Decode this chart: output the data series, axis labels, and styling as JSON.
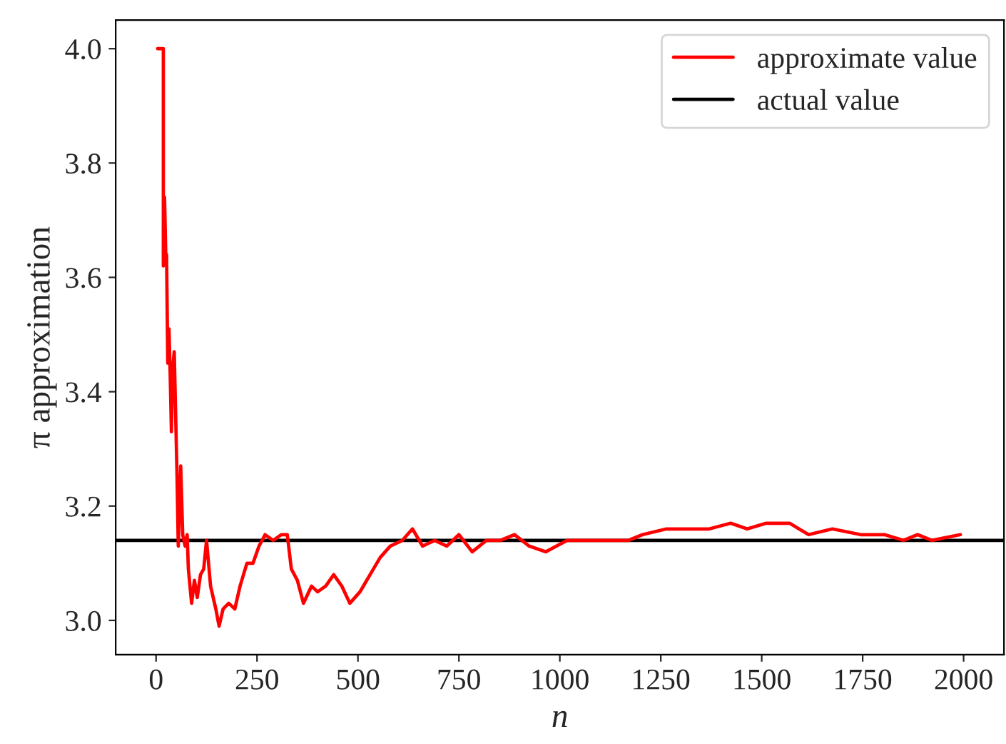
{
  "chart_data": {
    "type": "line",
    "xlabel": "n",
    "ylabel": "π approximation",
    "xlim": [
      -100,
      2100
    ],
    "ylim": [
      2.94,
      4.05
    ],
    "xticks": [
      0,
      250,
      500,
      750,
      1000,
      1250,
      1500,
      1750,
      2000
    ],
    "yticks": [
      {
        "value": 3.0,
        "label": "3.0"
      },
      {
        "value": 3.2,
        "label": "3.2"
      },
      {
        "value": 3.4,
        "label": "3.4"
      },
      {
        "value": 3.6,
        "label": "3.6"
      },
      {
        "value": 3.8,
        "label": "3.8"
      },
      {
        "value": 4.0,
        "label": "4.0"
      }
    ],
    "grid": false,
    "legend": "top right",
    "series": [
      {
        "name": "approximate value",
        "color": "#ff0000",
        "x": [
          4,
          18,
          18,
          21,
          24,
          26,
          29,
          32,
          35,
          38,
          41,
          45,
          52,
          55,
          61,
          66,
          72,
          77,
          80,
          88,
          95,
          102,
          110,
          118,
          125,
          135,
          148,
          156,
          166,
          180,
          195,
          208,
          225,
          240,
          255,
          270,
          290,
          310,
          325,
          335,
          350,
          365,
          385,
          400,
          420,
          440,
          460,
          480,
          505,
          530,
          555,
          580,
          610,
          635,
          660,
          690,
          720,
          750,
          783,
          818,
          853,
          888,
          924,
          965,
          1018,
          1064,
          1111,
          1170,
          1205,
          1264,
          1323,
          1370,
          1423,
          1464,
          1511,
          1569,
          1616,
          1675,
          1745,
          1804,
          1851,
          1886,
          1921,
          1992
        ],
        "values": [
          4.0,
          4.0,
          3.62,
          3.74,
          3.64,
          3.64,
          3.45,
          3.51,
          3.43,
          3.33,
          3.44,
          3.47,
          3.25,
          3.13,
          3.27,
          3.15,
          3.13,
          3.15,
          3.09,
          3.03,
          3.07,
          3.04,
          3.08,
          3.09,
          3.14,
          3.06,
          3.02,
          2.99,
          3.02,
          3.03,
          3.02,
          3.06,
          3.1,
          3.1,
          3.13,
          3.15,
          3.14,
          3.15,
          3.15,
          3.09,
          3.07,
          3.03,
          3.06,
          3.05,
          3.06,
          3.08,
          3.06,
          3.03,
          3.05,
          3.08,
          3.11,
          3.13,
          3.14,
          3.16,
          3.13,
          3.14,
          3.13,
          3.15,
          3.12,
          3.14,
          3.14,
          3.15,
          3.13,
          3.12,
          3.14,
          3.14,
          3.14,
          3.14,
          3.15,
          3.16,
          3.16,
          3.16,
          3.17,
          3.16,
          3.17,
          3.17,
          3.15,
          3.16,
          3.15,
          3.15,
          3.14,
          3.15,
          3.14,
          3.15
        ]
      }
    ],
    "ref_lines": [
      {
        "axis": "y",
        "value": 3.14,
        "label": "actual value",
        "color": "#000000"
      }
    ]
  }
}
